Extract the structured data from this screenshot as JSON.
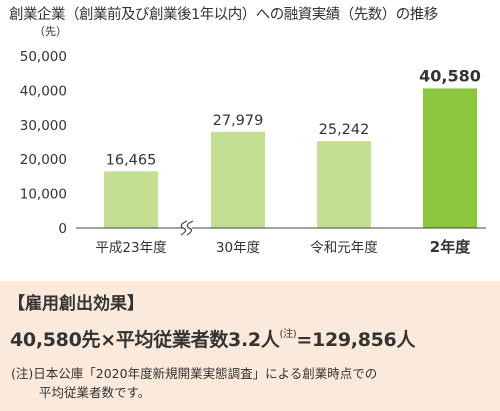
{
  "chart_data": {
    "type": "bar",
    "title": "創業企業（創業前及び創業後1年以内）への融資実績（先数）の推移",
    "ylabel": "（先）",
    "ylim": [
      0,
      50000
    ],
    "yticks": [
      "0",
      "10,000",
      "20,000",
      "30,000",
      "40,000",
      "50,000"
    ],
    "categories": [
      "平成23年度",
      "30年度",
      "令和元年度",
      "2年度"
    ],
    "values": [
      16465,
      27979,
      25242,
      40580
    ],
    "value_labels": [
      "16,465",
      "27,979",
      "25,242",
      "40,580"
    ],
    "axis_break_between": [
      "平成23年度",
      "30年度"
    ],
    "highlighted_category": "2年度",
    "grid": false,
    "colors": {
      "bar": "#c3df93",
      "highlight": "#8cc63f",
      "highlight_label": "#333333"
    }
  },
  "effect": {
    "heading": "【雇用創出効果】",
    "formula_main": "40,580先×平均従業者数3.2人",
    "formula_sup": "(注)",
    "formula_result": "=129,856人",
    "note_line1": "(注)日本公庫「2020年度新規開業実態調査」による創業時点での",
    "note_line2": "平均従業者数です。"
  }
}
